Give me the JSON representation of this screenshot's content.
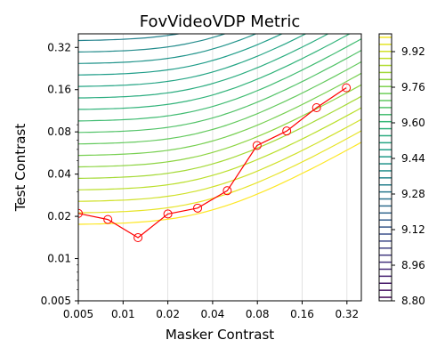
{
  "chart_data": {
    "type": "line",
    "title": "FovVideoVDP Metric",
    "xlabel": "Masker Contrast",
    "ylabel": "Test Contrast",
    "xscale": "log2",
    "yscale": "log2",
    "xlim": [
      0.005,
      0.4
    ],
    "ylim": [
      0.005,
      0.4
    ],
    "xticks": [
      0.005,
      0.01,
      0.02,
      0.04,
      0.08,
      0.16,
      0.32
    ],
    "xtick_labels": [
      "0.005",
      "0.01",
      "0.02",
      "0.04",
      "0.08",
      "0.16",
      "0.32"
    ],
    "yticks": [
      0.005,
      0.01,
      0.02,
      0.04,
      0.08,
      0.16,
      0.32
    ],
    "ytick_labels": [
      "0.005",
      "0.01",
      "0.02",
      "0.04",
      "0.08",
      "0.16",
      "0.32"
    ],
    "grid": "vertical",
    "series": [
      {
        "color": "#ff0000",
        "marker": "circle-open",
        "x": [
          0.005,
          0.0079,
          0.0126,
          0.02,
          0.0317,
          0.0502,
          0.0796,
          0.126,
          0.2,
          0.317
        ],
        "y": [
          0.021,
          0.019,
          0.0141,
          0.0208,
          0.0229,
          0.0305,
          0.064,
          0.0812,
          0.119,
          0.165
        ]
      }
    ],
    "contours": {
      "colormap": "viridis",
      "levels_count": 30,
      "description_levels_range": [
        8.8,
        10.0
      ]
    },
    "colorbar": {
      "ticks": [
        8.8,
        8.96,
        9.12,
        9.28,
        9.44,
        9.6,
        9.76,
        9.92
      ],
      "tick_labels": [
        "8.80",
        "8.96",
        "9.12",
        "9.28",
        "9.44",
        "9.60",
        "9.76",
        "9.92"
      ],
      "range": [
        8.8,
        10.0
      ]
    }
  }
}
